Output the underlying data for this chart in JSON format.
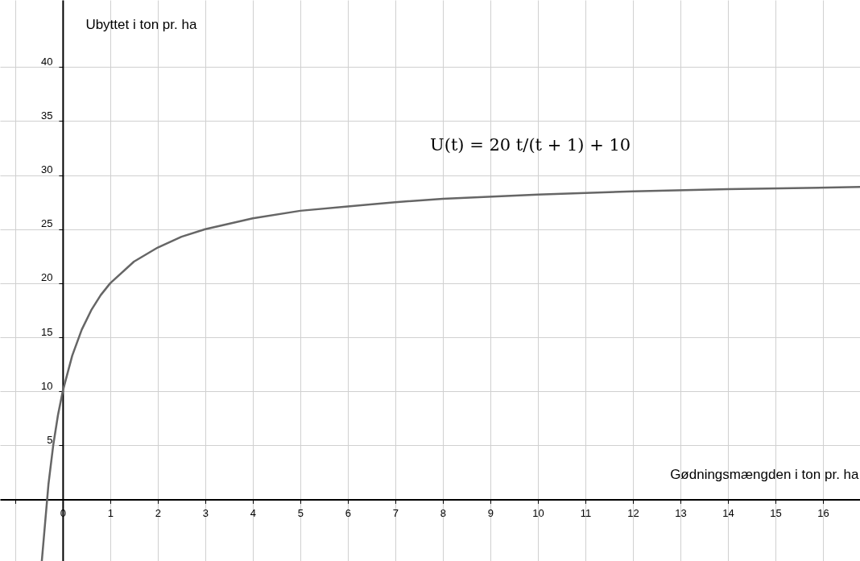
{
  "chart_data": {
    "type": "line",
    "xlabel": "Gødningsmængden i ton pr. ha",
    "ylabel": "Ubyttet i ton pr. ha",
    "annotations": [
      "U(t) = 20 t/(t + 1) + 10"
    ],
    "series": [
      {
        "color": "#666666",
        "x": [
          -0.44,
          -0.3,
          -0.2,
          -0.1,
          0,
          0.2,
          0.4,
          0.6,
          0.8,
          1,
          1.5,
          2,
          2.5,
          3,
          4,
          5,
          6,
          7,
          8,
          10,
          12,
          14,
          16.78
        ],
        "values": [
          -5.7,
          1.4,
          5.0,
          7.8,
          10,
          13.3,
          15.7,
          17.5,
          18.9,
          20,
          22.0,
          23.3,
          24.3,
          25,
          26,
          26.7,
          27.1,
          27.5,
          27.8,
          28.2,
          28.5,
          28.7,
          28.9
        ]
      }
    ],
    "xlim": [
      -1.32,
      16.78
    ],
    "ylim": [
      -5.7,
      46.2
    ],
    "xticks": [
      {
        "value": -1,
        "label": null
      },
      0,
      1,
      2,
      3,
      4,
      5,
      6,
      7,
      8,
      9,
      10,
      11,
      12,
      13,
      14,
      15,
      16
    ],
    "yticks": [
      5,
      10,
      15,
      20,
      25,
      30,
      35,
      40
    ],
    "grid": true,
    "marker": "none",
    "line_style": "solid"
  }
}
